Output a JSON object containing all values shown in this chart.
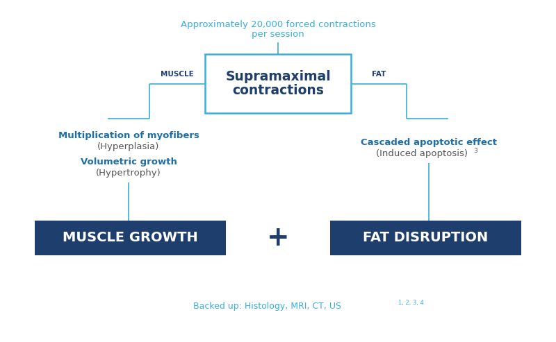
{
  "bg_color": "#ffffff",
  "light_blue": "#3aaedc",
  "dark_blue": "#1e3f6e",
  "mid_blue": "#1e6fa8",
  "box_border": "#3aaedc",
  "top_text_line1": "Approximately 20,000 forced contractions",
  "top_text_line2": "per session",
  "center_box_line1": "Supramaximal",
  "center_box_line2": "contractions",
  "muscle_label": "MUSCLE",
  "fat_label": "FAT",
  "left_bold1": "Multiplication of myofibers",
  "left_regular1": "(Hyperplasia)",
  "left_bold2": "Volumetric growth",
  "left_regular2": "(Hypertrophy)",
  "right_bold1": "Cascaded apoptotic effect",
  "right_regular1": "(Induced apoptosis)",
  "right_superscript": "3",
  "bottom_left_box": "MUSCLE GROWTH",
  "bottom_right_box": "FAT DISRUPTION",
  "plus_sign": "+",
  "footer_main": "Backed up: Histology, MRI, CT, US",
  "footer_super": "1, 2, 3, 4"
}
